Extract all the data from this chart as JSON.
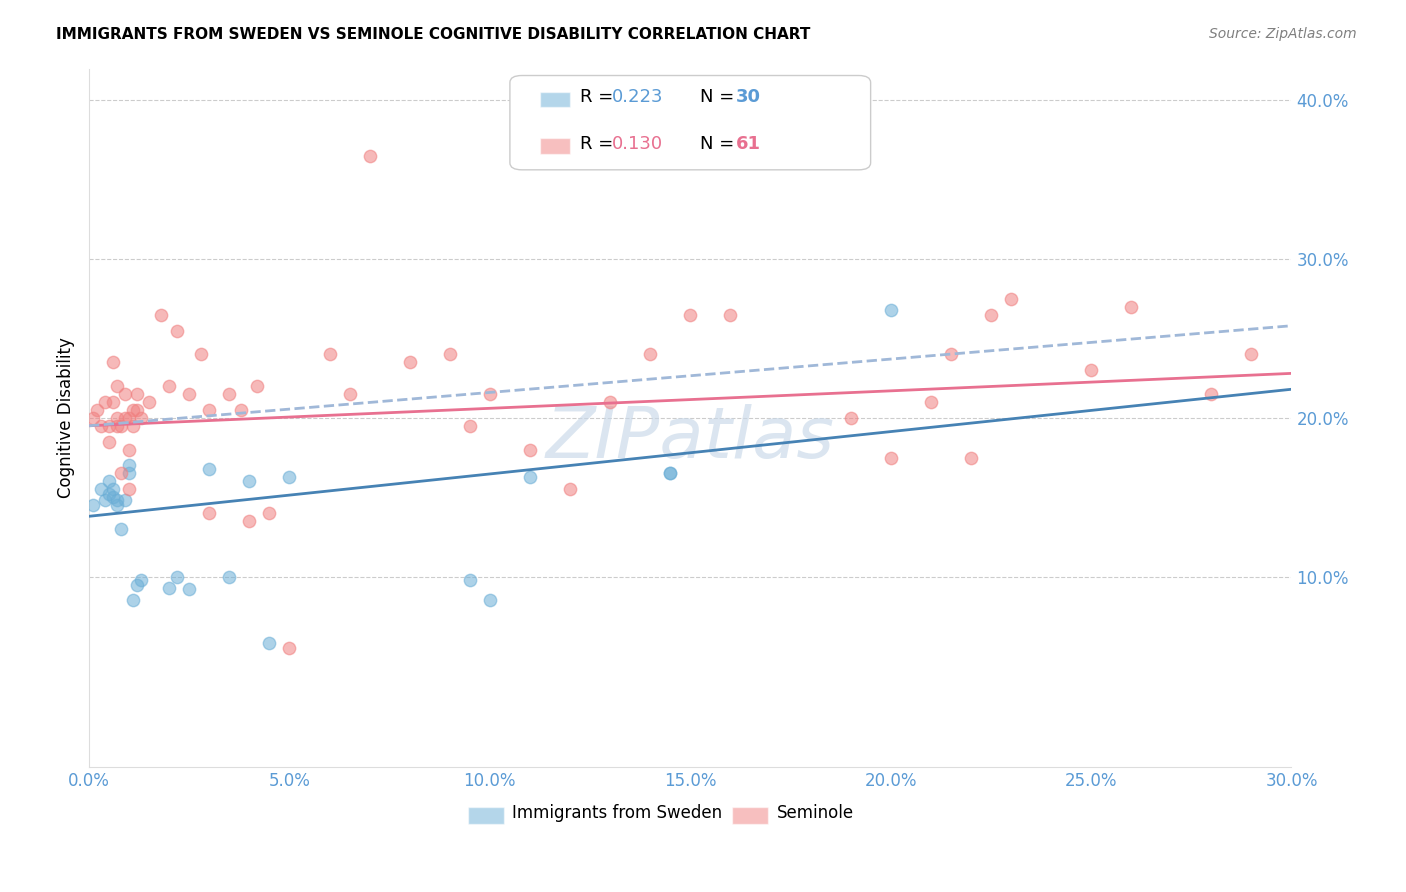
{
  "title": "IMMIGRANTS FROM SWEDEN VS SEMINOLE COGNITIVE DISABILITY CORRELATION CHART",
  "source": "Source: ZipAtlas.com",
  "ylabel": "Cognitive Disability",
  "xlim": [
    0.0,
    0.3
  ],
  "ylim": [
    -0.02,
    0.42
  ],
  "yticks": [
    0.1,
    0.2,
    0.3,
    0.4
  ],
  "ytick_labels": [
    "10.0%",
    "20.0%",
    "30.0%",
    "40.0%"
  ],
  "xticks": [
    0.0,
    0.05,
    0.1,
    0.15,
    0.2,
    0.25,
    0.3
  ],
  "xtick_labels": [
    "0.0%",
    "5.0%",
    "10.0%",
    "15.0%",
    "20.0%",
    "25.0%",
    "30.0%"
  ],
  "blue_scatter_x": [
    0.001,
    0.003,
    0.004,
    0.005,
    0.005,
    0.006,
    0.006,
    0.007,
    0.007,
    0.008,
    0.009,
    0.01,
    0.01,
    0.011,
    0.012,
    0.013,
    0.02,
    0.022,
    0.025,
    0.03,
    0.035,
    0.04,
    0.045,
    0.05,
    0.095,
    0.1,
    0.11,
    0.145,
    0.145,
    0.2
  ],
  "blue_scatter_y": [
    0.145,
    0.155,
    0.148,
    0.16,
    0.152,
    0.155,
    0.15,
    0.148,
    0.145,
    0.13,
    0.148,
    0.165,
    0.17,
    0.085,
    0.095,
    0.098,
    0.093,
    0.1,
    0.092,
    0.168,
    0.1,
    0.16,
    0.058,
    0.163,
    0.098,
    0.085,
    0.163,
    0.165,
    0.165,
    0.268
  ],
  "pink_scatter_x": [
    0.001,
    0.002,
    0.003,
    0.004,
    0.005,
    0.005,
    0.006,
    0.006,
    0.007,
    0.007,
    0.007,
    0.008,
    0.008,
    0.009,
    0.009,
    0.01,
    0.01,
    0.01,
    0.011,
    0.011,
    0.012,
    0.012,
    0.013,
    0.015,
    0.018,
    0.02,
    0.022,
    0.025,
    0.028,
    0.03,
    0.03,
    0.035,
    0.038,
    0.04,
    0.042,
    0.045,
    0.05,
    0.06,
    0.065,
    0.07,
    0.08,
    0.09,
    0.095,
    0.1,
    0.11,
    0.12,
    0.13,
    0.14,
    0.15,
    0.16,
    0.19,
    0.2,
    0.21,
    0.215,
    0.22,
    0.225,
    0.23,
    0.25,
    0.26,
    0.28,
    0.29
  ],
  "pink_scatter_y": [
    0.2,
    0.205,
    0.195,
    0.21,
    0.195,
    0.185,
    0.235,
    0.21,
    0.2,
    0.195,
    0.22,
    0.195,
    0.165,
    0.2,
    0.215,
    0.2,
    0.18,
    0.155,
    0.205,
    0.195,
    0.215,
    0.205,
    0.2,
    0.21,
    0.265,
    0.22,
    0.255,
    0.215,
    0.24,
    0.205,
    0.14,
    0.215,
    0.205,
    0.135,
    0.22,
    0.14,
    0.055,
    0.24,
    0.215,
    0.365,
    0.235,
    0.24,
    0.195,
    0.215,
    0.18,
    0.155,
    0.21,
    0.24,
    0.265,
    0.265,
    0.2,
    0.175,
    0.21,
    0.24,
    0.175,
    0.265,
    0.275,
    0.23,
    0.27,
    0.215,
    0.24
  ],
  "blue_line_y_start": 0.138,
  "blue_line_y_end": 0.218,
  "pink_line_y_start": 0.195,
  "pink_line_y_end": 0.228,
  "dash_line_y_start": 0.195,
  "dash_line_y_end": 0.258,
  "background_color": "#ffffff",
  "grid_color": "#cccccc",
  "scatter_alpha": 0.55,
  "scatter_size": 80,
  "blue_color": "#6baed6",
  "pink_color": "#f08080",
  "blue_line_color": "#4682b4",
  "pink_line_color": "#e87090",
  "dash_line_color": "#a0b8d8",
  "watermark": "ZIPatlas",
  "title_fontsize": 11,
  "axis_label_color": "#5b9bd5",
  "legend_blue_R": "0.223",
  "legend_blue_N": "30",
  "legend_pink_R": "0.130",
  "legend_pink_N": "61",
  "legend_label_blue": "Immigrants from Sweden",
  "legend_label_pink": "Seminole"
}
